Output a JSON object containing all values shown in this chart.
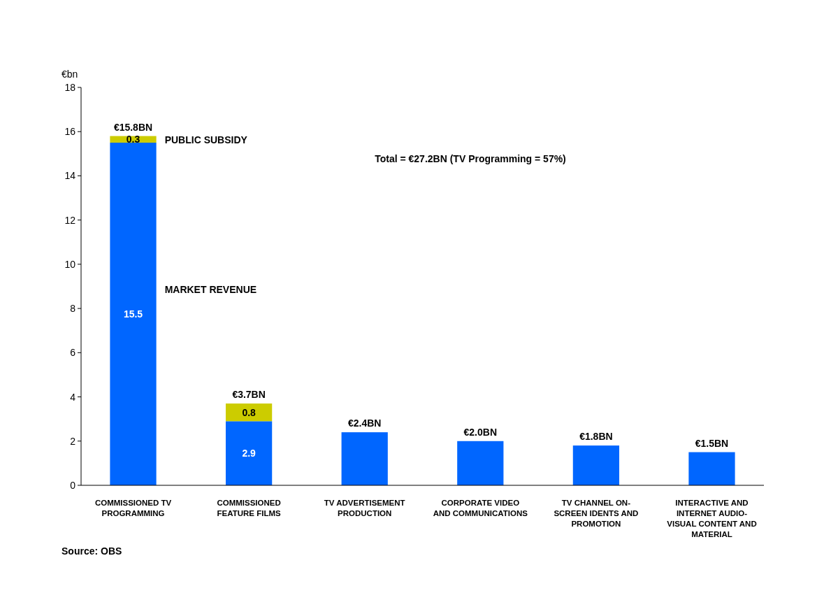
{
  "chart_data": {
    "type": "bar",
    "stacked": true,
    "ylabel": "€bn",
    "categories": [
      "COMMISSIONED TV PROGRAMMING",
      "COMMISSIONED FEATURE FILMS",
      "TV ADVERTISEMENT PRODUCTION",
      "CORPORATE VIDEO AND COMMUNICATIONS",
      "TV CHANNEL ON-SCREEN IDENTS AND PROMOTION",
      "INTERACTIVE AND INTERNET AUDIO-VISUAL CONTENT AND MATERIAL"
    ],
    "series": [
      {
        "name": "MARKET REVENUE",
        "color": "#0066ff",
        "values": [
          15.5,
          2.9,
          2.4,
          2.0,
          1.8,
          1.5
        ],
        "value_labels": [
          "15.5",
          "2.9",
          null,
          null,
          null,
          null
        ]
      },
      {
        "name": "PUBLIC SUBSIDY",
        "color": "#cccc00",
        "values": [
          0.3,
          0.8,
          null,
          null,
          null,
          null
        ],
        "value_labels": [
          "0.3",
          "0.8",
          null,
          null,
          null,
          null
        ]
      }
    ],
    "totals": [
      "€15.8BN",
      "€3.7BN",
      "€2.4BN",
      "€2.0BN",
      "€1.8BN",
      "€1.5BN"
    ],
    "ylim": [
      0,
      18
    ],
    "yticks": [
      0,
      2,
      4,
      6,
      8,
      10,
      12,
      14,
      16,
      18
    ],
    "grid": false,
    "annotations": [
      "Total = €27.2BN (TV Programming = 57%)",
      "Source: OBS"
    ]
  }
}
